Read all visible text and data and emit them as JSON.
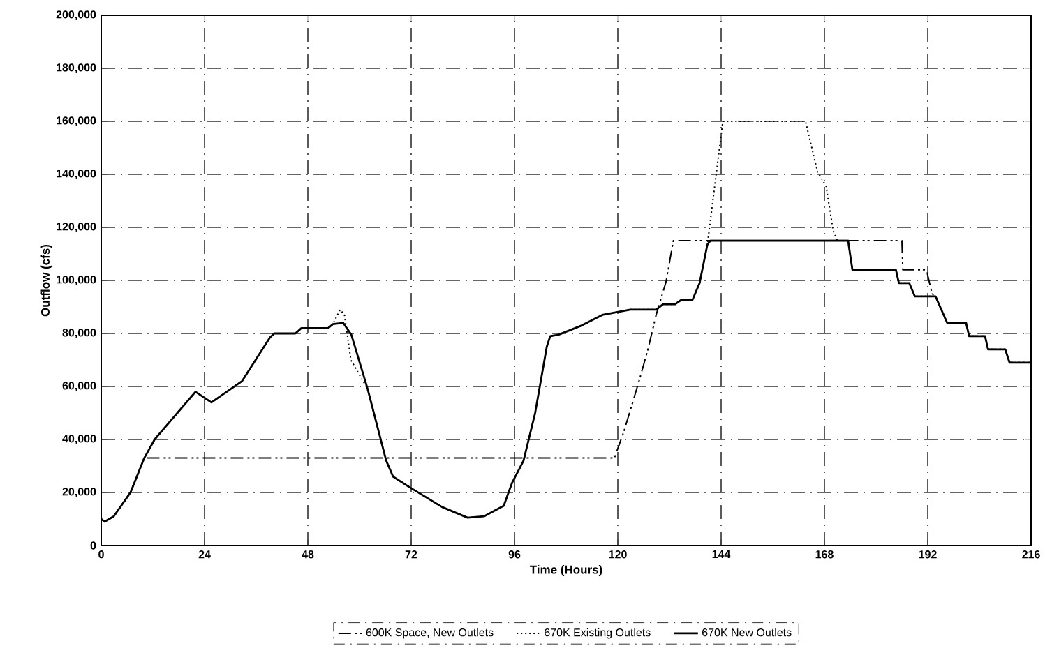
{
  "chart_data": {
    "type": "line",
    "xlabel": "Time (Hours)",
    "ylabel": "Outflow (cfs)",
    "xlim": [
      0,
      216
    ],
    "xticks": [
      0,
      24,
      48,
      72,
      96,
      120,
      144,
      168,
      192,
      216
    ],
    "ylim": [
      0,
      200000
    ],
    "yticks": [
      {
        "value": 0,
        "label": "0"
      },
      {
        "value": 20000,
        "label": "20,000"
      },
      {
        "value": 40000,
        "label": "40,000"
      },
      {
        "value": 60000,
        "label": "60,000"
      },
      {
        "value": 80000,
        "label": "80,000"
      },
      {
        "value": 100000,
        "label": "100,000"
      },
      {
        "value": 120000,
        "label": "120,000"
      },
      {
        "value": 140000,
        "label": "140,000"
      },
      {
        "value": 160000,
        "label": "160,000"
      },
      {
        "value": 180000,
        "label": "180,000"
      },
      {
        "value": 200000,
        "label": "200,000"
      }
    ],
    "grid": true,
    "legend": "bottom",
    "marker": "none",
    "series": [
      {
        "name": "600K Space, New Outlets",
        "color": "#000000",
        "line_style": "dashed",
        "x": [
          0,
          0.8,
          2.9,
          6.8,
          10,
          119.2,
          121.3,
          122.9,
          125.1,
          127,
          128.9,
          131.2,
          132.9,
          186,
          186.2,
          191.7,
          193,
          193.8,
          196.5,
          200.9,
          201.6,
          205.3,
          206,
          210,
          211,
          216
        ],
        "values": [
          10000,
          9000,
          11000,
          20000,
          33000,
          33000,
          42500,
          51000,
          63000,
          74000,
          87000,
          99500,
          115000,
          115000,
          104000,
          104000,
          95000,
          94000,
          84000,
          84000,
          79000,
          79000,
          74000,
          74000,
          69000,
          69000
        ]
      },
      {
        "name": "670K Existing Outlets",
        "color": "#000000",
        "line_style": "dotted",
        "x": [
          0,
          0.8,
          2.9,
          6.8,
          10,
          12.4,
          21.9,
          25.6,
          32.7,
          39.2,
          40.2,
          45.1,
          46.5,
          52.7,
          53.8,
          55.5,
          56.5,
          58,
          61.9,
          66.2,
          67.8,
          71.6,
          79.2,
          85.1,
          88.9,
          93.5,
          95.4,
          98.1,
          100.8,
          103.5,
          104.3,
          106.2,
          111.6,
          116.4,
          122.9,
          128.9,
          130.5,
          133.3,
          134.6,
          137.3,
          139,
          140.8,
          144.4,
          163.6,
          166.4,
          168.4,
          170,
          171,
          173.5,
          174.5,
          184.6,
          185.3,
          187.7,
          189,
          193.8,
          196.5,
          200.9,
          201.6,
          205.3,
          206,
          210,
          211,
          216
        ],
        "values": [
          10000,
          9000,
          11000,
          20000,
          33000,
          40000,
          58000,
          54000,
          62000,
          78500,
          80000,
          80000,
          82000,
          82000,
          83500,
          89000,
          87000,
          70000,
          59000,
          32000,
          26000,
          22000,
          14500,
          10500,
          11000,
          15000,
          23500,
          32000,
          50000,
          75000,
          79000,
          79500,
          83000,
          87000,
          89000,
          89000,
          91000,
          91000,
          92500,
          92500,
          99000,
          113500,
          160000,
          160000,
          141000,
          135500,
          119000,
          115000,
          115000,
          104000,
          104000,
          99000,
          99000,
          94000,
          94000,
          84000,
          84000,
          79000,
          79000,
          74000,
          74000,
          69000,
          69000
        ]
      },
      {
        "name": "670K New Outlets",
        "color": "#000000",
        "line_style": "solid",
        "x": [
          0,
          0.8,
          2.9,
          6.8,
          10,
          12.4,
          21.9,
          25.6,
          32.7,
          39.2,
          40.2,
          45.1,
          46.5,
          52.7,
          53.8,
          56.2,
          58.1,
          61.9,
          66.2,
          67.8,
          71.6,
          79.2,
          85.1,
          88.9,
          93.5,
          95.4,
          98.1,
          100.8,
          103.5,
          104.3,
          106.2,
          111.6,
          116.4,
          122.9,
          128.9,
          130.5,
          133.3,
          134.6,
          137.3,
          139,
          140.8,
          141.5,
          173.5,
          174.5,
          184.6,
          185.3,
          187.7,
          189,
          193.8,
          196.5,
          200.9,
          201.6,
          205.3,
          206,
          210,
          211,
          216
        ],
        "values": [
          10000,
          9000,
          11000,
          20000,
          33000,
          40000,
          58000,
          54000,
          62000,
          78500,
          80000,
          80000,
          82000,
          82000,
          83500,
          84000,
          79500,
          59000,
          32000,
          26000,
          22000,
          14500,
          10500,
          11000,
          15000,
          23500,
          32000,
          50000,
          75000,
          79000,
          79500,
          83000,
          87000,
          89000,
          89000,
          91000,
          91000,
          92500,
          92500,
          99000,
          113500,
          115000,
          115000,
          104000,
          104000,
          99000,
          99000,
          94000,
          94000,
          84000,
          84000,
          79000,
          79000,
          74000,
          74000,
          69000,
          69000
        ]
      }
    ]
  }
}
